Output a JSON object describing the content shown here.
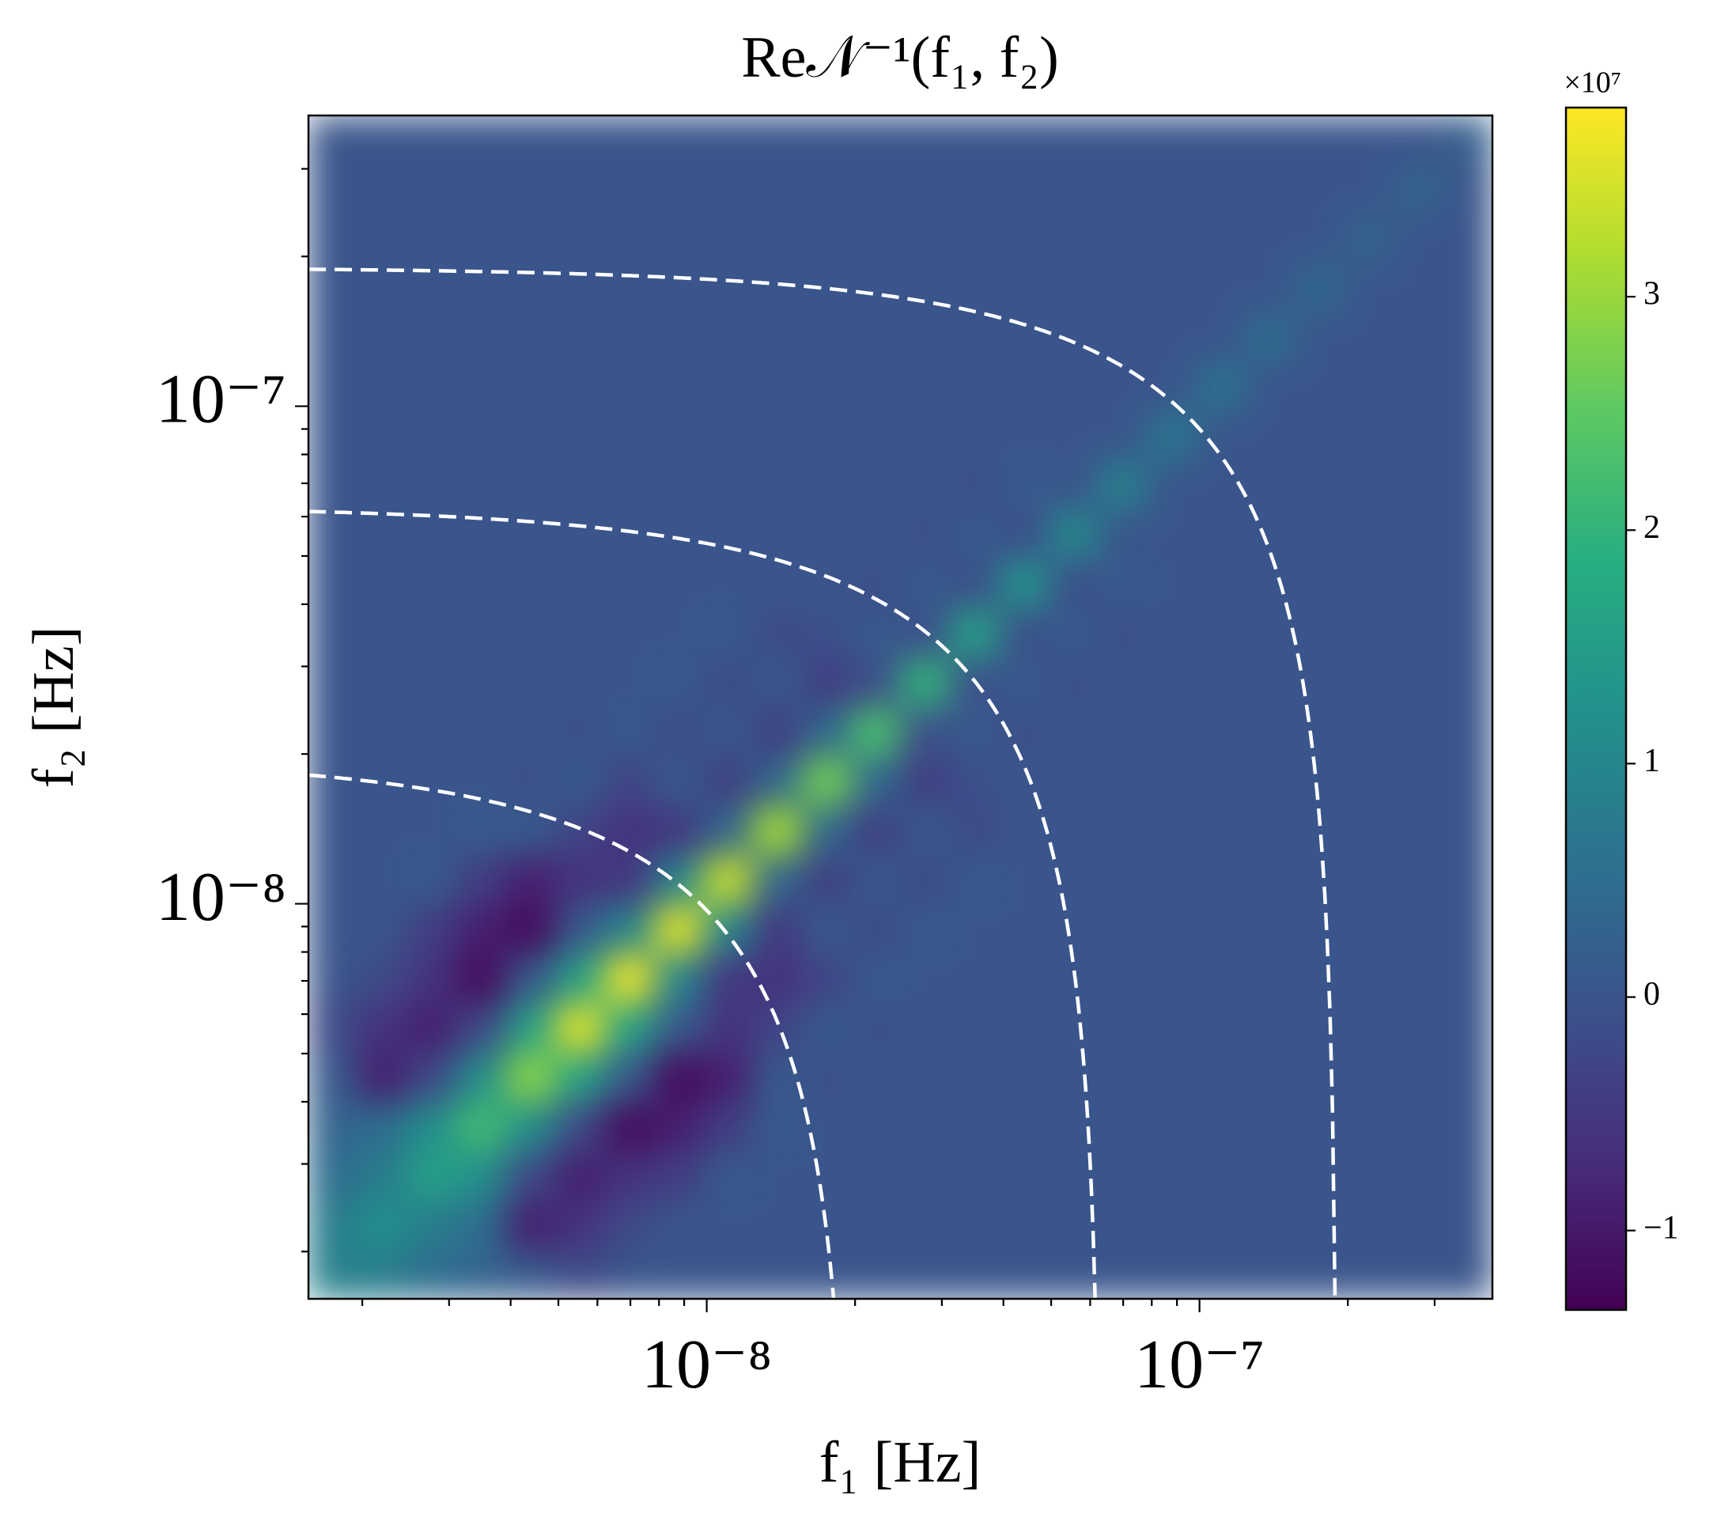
{
  "chart_data": {
    "type": "heatmap",
    "title": "Re𝒩⁻¹(f₁, f₂)",
    "x_label": "f₁ [Hz]",
    "y_label": "f₂ [Hz]",
    "log_x": true,
    "log_y": true,
    "xlim": [
      1.555e-09,
      3.93e-07
    ],
    "ylim": [
      1.607e-09,
      3.84e-07
    ],
    "xticks": [
      {
        "value": 1e-08,
        "label": "10⁻⁸"
      },
      {
        "value": 1e-07,
        "label": "10⁻⁷"
      }
    ],
    "yticks": [
      {
        "value": 1e-08,
        "label": "10⁻⁸"
      },
      {
        "value": 1e-07,
        "label": "10⁻⁷"
      }
    ],
    "xminor": [
      2e-09,
      3e-09,
      4e-09,
      5e-09,
      6e-09,
      7e-09,
      8e-09,
      9e-09,
      2e-08,
      3e-08,
      4e-08,
      5e-08,
      6e-08,
      7e-08,
      8e-08,
      9e-08,
      2e-07,
      3e-07
    ],
    "yminor": [
      2e-09,
      3e-09,
      4e-09,
      5e-09,
      6e-09,
      7e-09,
      8e-09,
      9e-09,
      2e-08,
      3e-08,
      4e-08,
      5e-08,
      6e-08,
      7e-08,
      8e-08,
      9e-08,
      2e-07,
      3e-07
    ],
    "colormap": "viridis",
    "clim": [
      -1.34,
      3.81
    ],
    "colorbar_ticks": [
      {
        "value": -1,
        "label": "−1"
      },
      0,
      1,
      2,
      3
    ],
    "colorbar_offset": "×10⁷",
    "dashed_curves": {
      "f1_plus_f2": [
        1.97e-08,
        6.3e-08,
        1.9e-07
      ],
      "color": "white"
    },
    "z": [
      [
        0.9,
        0.8,
        0.5,
        0.3,
        0.1,
        -0.2,
        0,
        0,
        0,
        0,
        0,
        0,
        0,
        0,
        0,
        0,
        0,
        0,
        0,
        0,
        0,
        0,
        0,
        0
      ],
      [
        0.8,
        1.2,
        0.8,
        0.5,
        -0.9,
        -0.6,
        -0.2,
        0,
        0,
        0,
        0,
        0,
        0,
        0,
        0,
        0,
        0,
        0,
        0,
        0,
        0,
        0,
        0,
        0
      ],
      [
        0.5,
        0.8,
        1.6,
        1.2,
        -0.2,
        -0.9,
        -0.6,
        -0.4,
        0.1,
        0,
        0,
        0,
        0,
        0,
        0,
        0,
        0,
        0,
        0,
        0,
        0,
        0,
        0,
        0
      ],
      [
        0.3,
        0.5,
        1.2,
        2.2,
        1.2,
        -0.2,
        -1.2,
        -0.9,
        -0.4,
        0.1,
        0,
        0,
        0,
        0,
        0,
        0,
        0,
        0,
        0,
        0,
        0,
        0,
        0,
        0
      ],
      [
        0.1,
        -0.9,
        -0.2,
        1.2,
        2.9,
        1.6,
        0.1,
        -1.2,
        -0.9,
        0.1,
        -0.1,
        0,
        0,
        0,
        0,
        0,
        0,
        0,
        0,
        0,
        0,
        0,
        0,
        0
      ],
      [
        -0.2,
        -0.6,
        -0.9,
        -0.2,
        1.6,
        3.6,
        1.6,
        0.1,
        -0.6,
        -0.3,
        0.1,
        -0.1,
        0,
        0,
        0,
        0,
        0,
        0,
        0,
        0,
        0,
        0,
        0,
        0
      ],
      [
        0,
        -0.2,
        -0.6,
        -1.2,
        0.1,
        1.6,
        3.7,
        1.0,
        -0.5,
        -0.6,
        -0.3,
        0.1,
        0,
        0,
        0,
        0,
        0,
        0,
        0,
        0,
        0,
        0,
        0,
        0
      ],
      [
        0,
        0,
        -0.4,
        -0.9,
        -1.2,
        0.1,
        1.0,
        3.6,
        1.0,
        -0.5,
        0.1,
        -0.2,
        0.1,
        0,
        0,
        0,
        0,
        0,
        0,
        0,
        0,
        0,
        0,
        0
      ],
      [
        0,
        0,
        0.1,
        -0.4,
        -0.9,
        -0.6,
        -0.5,
        1.0,
        3.4,
        0.4,
        -0.4,
        0.1,
        -0.2,
        0.1,
        0,
        0,
        0,
        0,
        0,
        0,
        0,
        0,
        0,
        0
      ],
      [
        0,
        0,
        0,
        0.1,
        0.1,
        -0.3,
        -0.6,
        -0.5,
        0.4,
        3.1,
        0.4,
        -0.4,
        0.1,
        -0.2,
        0,
        0,
        0,
        0,
        0,
        0,
        0,
        0,
        0,
        0
      ],
      [
        0,
        0,
        0,
        0,
        -0.1,
        0.1,
        -0.3,
        0.1,
        -0.4,
        0.4,
        2.7,
        0.4,
        -0.4,
        -0.1,
        0,
        0,
        0,
        0,
        0,
        0,
        0,
        0,
        0,
        0
      ],
      [
        0,
        0,
        0,
        0,
        0,
        -0.1,
        0.1,
        -0.2,
        0.1,
        -0.4,
        0.4,
        2.3,
        -0.1,
        0.1,
        -0.1,
        0,
        0,
        0,
        0,
        0,
        0,
        0,
        0,
        0
      ],
      [
        0,
        0,
        0,
        0,
        0,
        0,
        0,
        0.1,
        -0.2,
        0.1,
        -0.4,
        -0.1,
        2.0,
        -0.1,
        0.1,
        -0.1,
        0,
        0,
        0,
        0,
        0,
        0,
        0,
        0
      ],
      [
        0,
        0,
        0,
        0,
        0,
        0,
        0,
        0,
        0.1,
        -0.2,
        -0.1,
        0.1,
        -0.1,
        1.6,
        -0.1,
        0.1,
        -0.1,
        0,
        0,
        0,
        0,
        0,
        0,
        0
      ],
      [
        0,
        0,
        0,
        0,
        0,
        0,
        0,
        0,
        0,
        0,
        0,
        -0.1,
        0.1,
        -0.1,
        1.3,
        -0.1,
        0.1,
        0,
        0,
        0,
        0,
        0,
        0,
        0
      ],
      [
        0,
        0,
        0,
        0,
        0,
        0,
        0,
        0,
        0,
        0,
        0,
        0,
        -0.1,
        0.1,
        -0.1,
        1.1,
        0,
        0,
        0,
        0,
        0,
        0,
        0,
        0
      ],
      [
        0,
        0,
        0,
        0,
        0,
        0,
        0,
        0,
        0,
        0,
        0,
        0,
        0,
        -0.1,
        0.1,
        0,
        0.9,
        0,
        0,
        0,
        0,
        0,
        0,
        0
      ],
      [
        0,
        0,
        0,
        0,
        0,
        0,
        0,
        0,
        0,
        0,
        0,
        0,
        0,
        0,
        0,
        0,
        0,
        0.7,
        0,
        0,
        0,
        0,
        0,
        0
      ],
      [
        0,
        0,
        0,
        0,
        0,
        0,
        0,
        0,
        0,
        0,
        0,
        0,
        0,
        0,
        0,
        0,
        0,
        0,
        0.6,
        0,
        0,
        0,
        0,
        0
      ],
      [
        0,
        0,
        0,
        0,
        0,
        0,
        0,
        0,
        0,
        0,
        0,
        0,
        0,
        0,
        0,
        0,
        0,
        0,
        0,
        0.5,
        0,
        0,
        0,
        0
      ],
      [
        0,
        0,
        0,
        0,
        0,
        0,
        0,
        0,
        0,
        0,
        0,
        0,
        0,
        0,
        0,
        0,
        0,
        0,
        0,
        0,
        0.4,
        0,
        0,
        0
      ],
      [
        0,
        0,
        0,
        0,
        0,
        0,
        0,
        0,
        0,
        0,
        0,
        0,
        0,
        0,
        0,
        0,
        0,
        0,
        0,
        0,
        0,
        0.3,
        0,
        0
      ],
      [
        0,
        0,
        0,
        0,
        0,
        0,
        0,
        0,
        0,
        0,
        0,
        0,
        0,
        0,
        0,
        0,
        0,
        0,
        0,
        0,
        0,
        0,
        0.3,
        0
      ],
      [
        0,
        0,
        0,
        0,
        0,
        0,
        0,
        0,
        0,
        0,
        0,
        0,
        0,
        0,
        0,
        0,
        0,
        0,
        0,
        0,
        0,
        0,
        0,
        0.2
      ]
    ]
  }
}
